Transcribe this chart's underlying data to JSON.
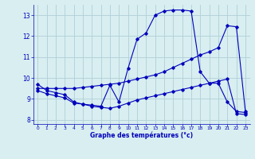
{
  "bg_color": "#d8eef0",
  "grid_color": "#b0d0d8",
  "line_color": "#0000bb",
  "xlabel": "Graphe des températures (°c)",
  "xlim": [
    -0.5,
    23.5
  ],
  "ylim": [
    7.8,
    13.5
  ],
  "yticks": [
    8,
    9,
    10,
    11,
    12,
    13
  ],
  "xticks": [
    0,
    1,
    2,
    3,
    4,
    5,
    6,
    7,
    8,
    9,
    10,
    11,
    12,
    13,
    14,
    15,
    16,
    17,
    18,
    19,
    20,
    21,
    22,
    23
  ],
  "curve1_x": [
    0,
    1,
    2,
    3,
    4,
    5,
    6,
    7,
    8,
    9,
    10,
    11,
    12,
    13,
    14,
    15,
    16,
    17,
    18,
    19,
    20,
    21,
    22,
    23
  ],
  "curve1_y": [
    9.7,
    9.4,
    9.3,
    9.2,
    8.85,
    8.75,
    8.7,
    8.65,
    9.65,
    8.85,
    10.45,
    11.85,
    12.15,
    13.0,
    13.2,
    13.25,
    13.25,
    13.2,
    10.3,
    9.75,
    9.75,
    8.85,
    8.4,
    8.35
  ],
  "curve2_x": [
    0,
    1,
    2,
    3,
    4,
    5,
    6,
    7,
    8,
    9,
    10,
    11,
    12,
    13,
    14,
    15,
    16,
    17,
    18,
    19,
    20,
    21,
    22,
    23
  ],
  "curve2_y": [
    9.5,
    9.5,
    9.5,
    9.5,
    9.5,
    9.55,
    9.6,
    9.65,
    9.7,
    9.75,
    9.85,
    9.95,
    10.05,
    10.15,
    10.3,
    10.5,
    10.7,
    10.9,
    11.1,
    11.25,
    11.45,
    12.5,
    12.45,
    8.4
  ],
  "curve3_x": [
    0,
    1,
    2,
    3,
    4,
    5,
    6,
    7,
    8,
    9,
    10,
    11,
    12,
    13,
    14,
    15,
    16,
    17,
    18,
    19,
    20,
    21,
    22,
    23
  ],
  "curve3_y": [
    9.4,
    9.25,
    9.15,
    9.05,
    8.8,
    8.75,
    8.65,
    8.6,
    8.55,
    8.65,
    8.8,
    8.95,
    9.05,
    9.15,
    9.25,
    9.35,
    9.45,
    9.55,
    9.65,
    9.75,
    9.85,
    9.95,
    8.3,
    8.25
  ]
}
